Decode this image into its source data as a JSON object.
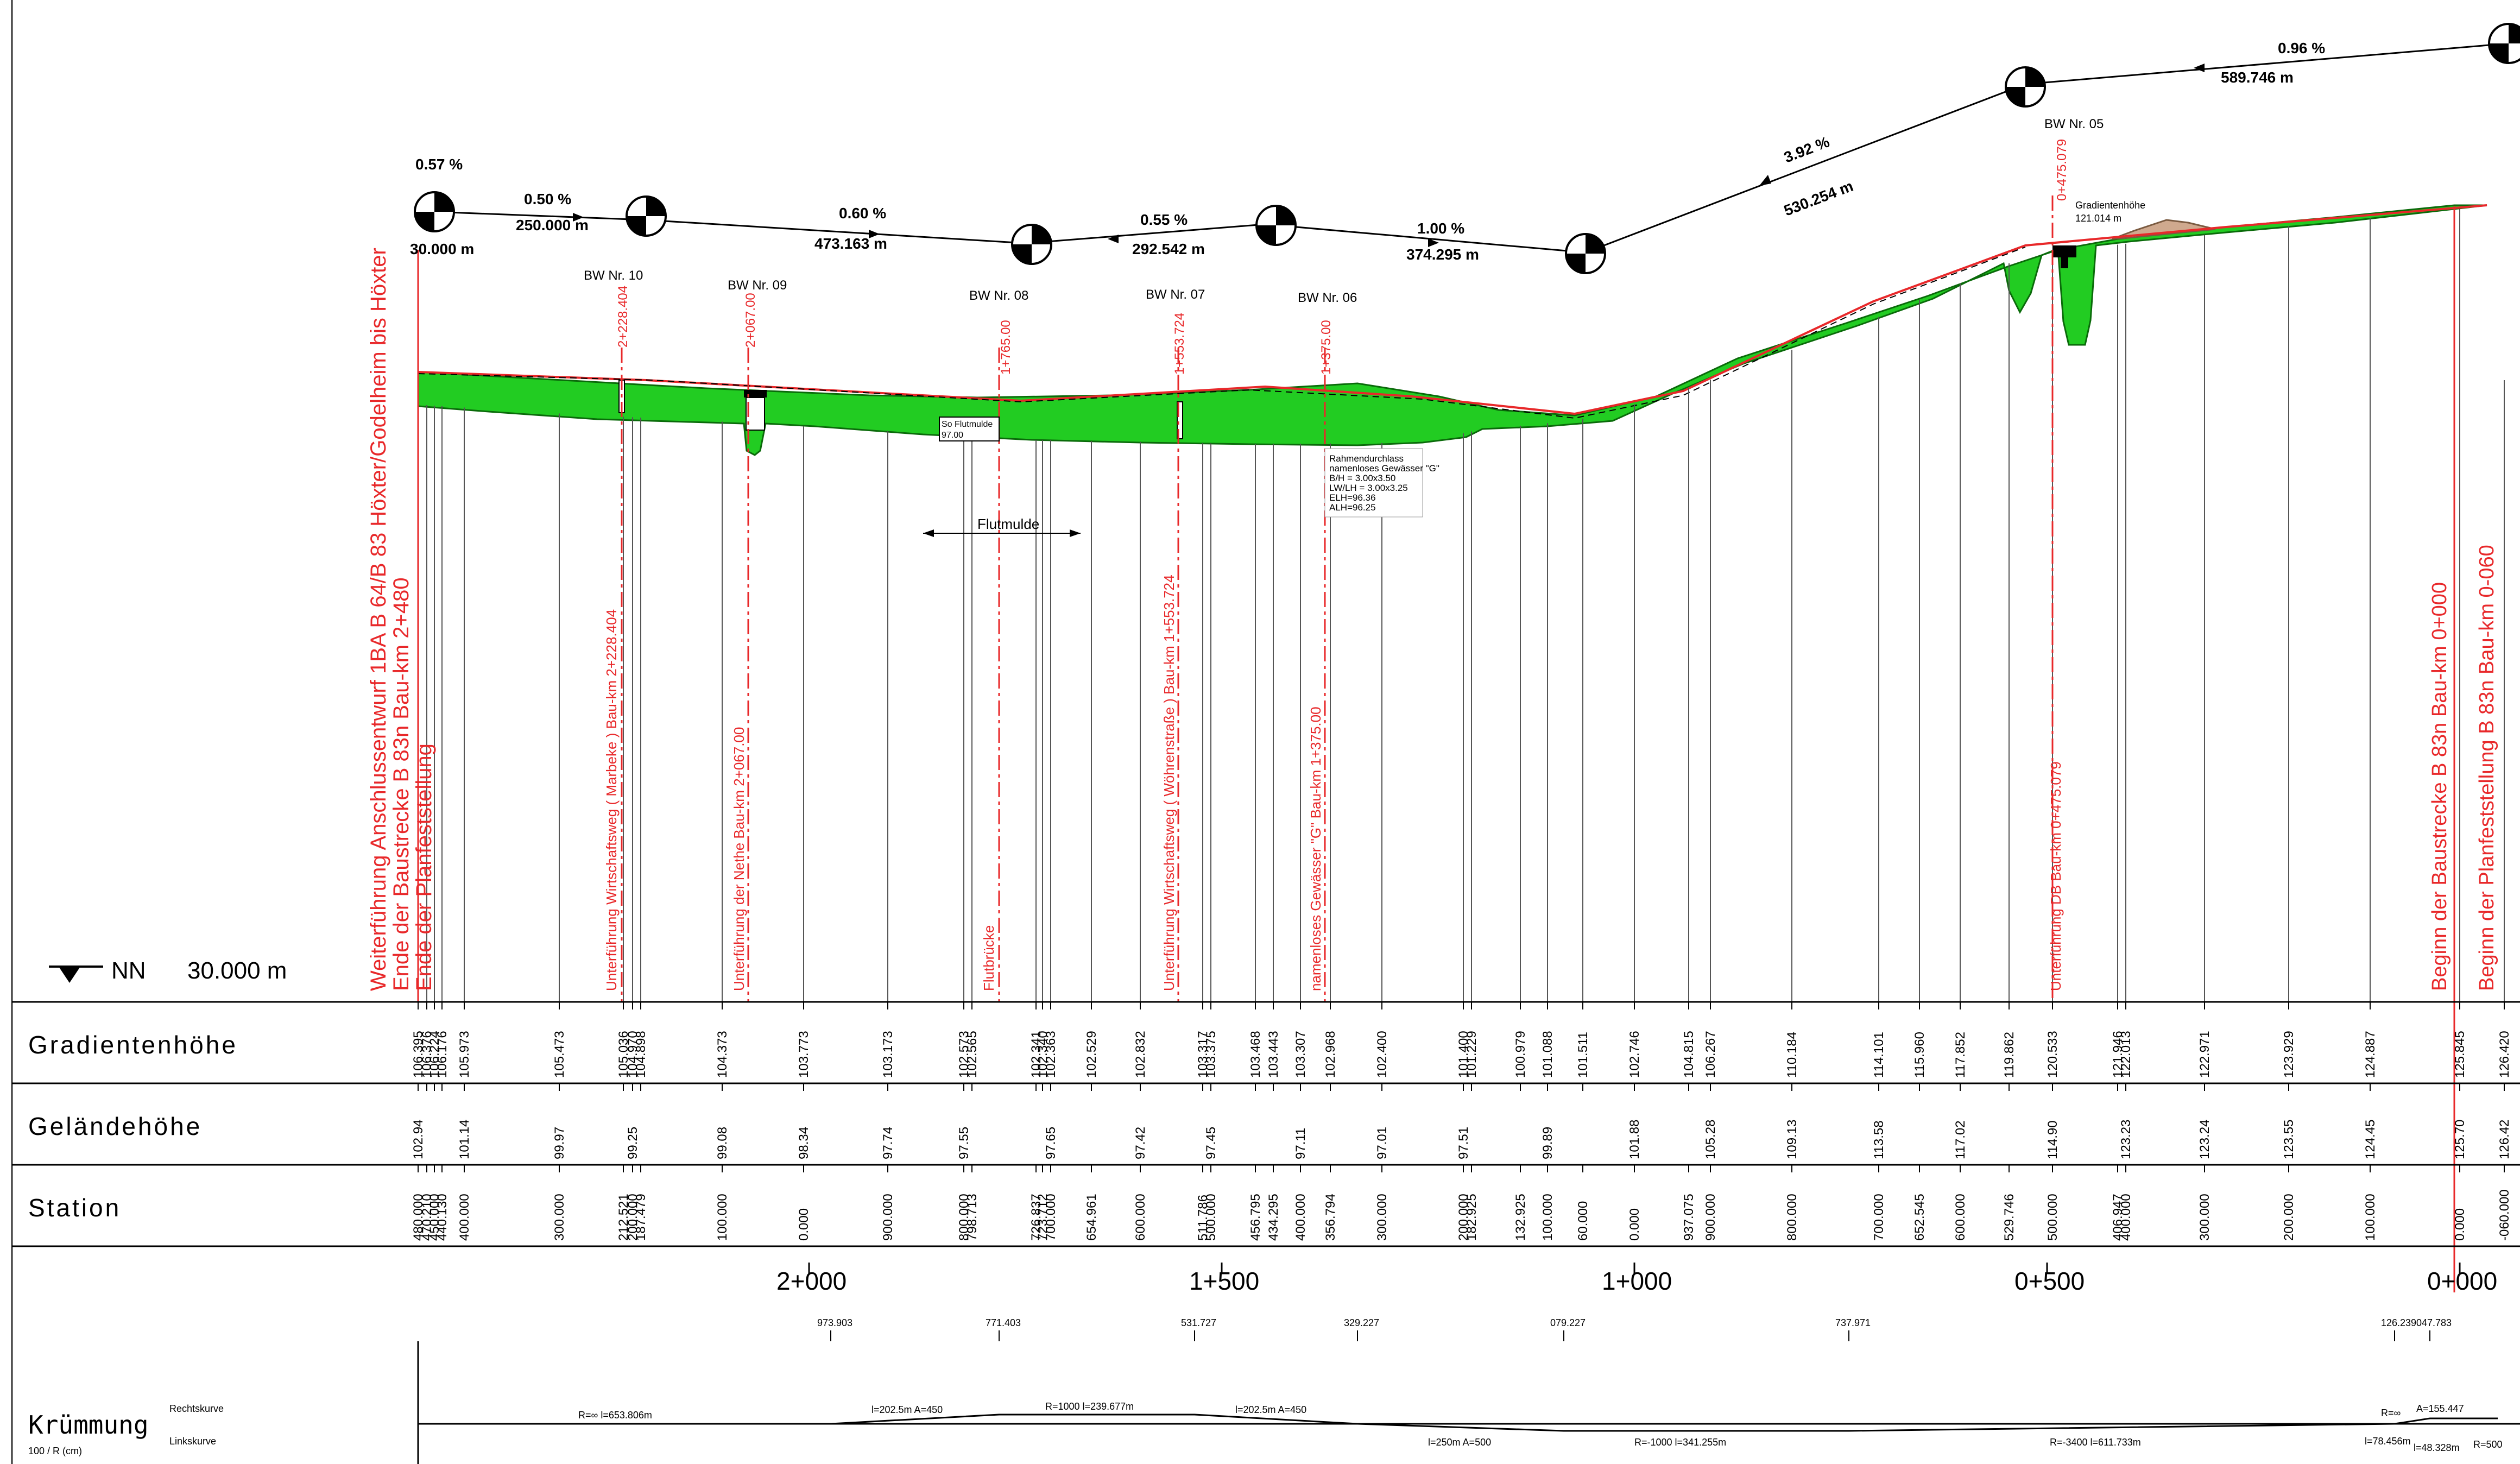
{
  "colors": {
    "fill": "#22cc22",
    "red": "#e8282a",
    "black": "#000000",
    "ground": "#cfa98e",
    "line": "#333333"
  },
  "datum_label": "NN",
  "datum_value": "30.000 m",
  "row_labels": [
    "Gradientenhöhe",
    "Geländehöhe",
    "Station"
  ],
  "curvature_label": "Krümmung",
  "curvature_sub": "100 / R (cm)",
  "curve_right": "Rechtskurve",
  "curve_left": "Linkskurve",
  "stationing": [
    "2+000",
    "1+500",
    "1+000",
    "0+500",
    "0+000"
  ],
  "tangent_points": [
    "973.903",
    "771.403",
    "531.727",
    "329.227",
    "079.227",
    "737.971",
    "126.239",
    "047.783"
  ],
  "curve_params": [
    "R=∞  l=653.806m",
    "l=202.5m  A=450",
    "R=1000  l=239.677m",
    "l=202.5m  A=450",
    "l=250m  A=500",
    "R=-1000  l=341.255m",
    "R=-3400  l=611.733m",
    "R=∞",
    "A=155.447",
    "l=78.456m",
    "l=48.328m",
    "R=500"
  ],
  "grades": [
    {
      "pct": "0.57 %",
      "len": "30.000 m"
    },
    {
      "pct": "0.50 %",
      "len": "250.000 m"
    },
    {
      "pct": "0.60 %",
      "len": "473.163 m"
    },
    {
      "pct": "0.55 %",
      "len": "292.542 m"
    },
    {
      "pct": "1.00 %",
      "len": "374.295 m"
    },
    {
      "pct": "3.92 %",
      "len": "530.254 m"
    },
    {
      "pct": "0.96 %",
      "len": "589.746 m"
    }
  ],
  "structures": [
    "BW Nr. 10",
    "BW Nr. 09",
    "BW Nr. 08",
    "BW Nr. 07",
    "BW Nr. 06",
    "BW Nr. 05"
  ],
  "red_kms": [
    "2+228.404",
    "2+067.00",
    "1+765.00",
    "1+553.724",
    "1+375.00",
    "0+475.079"
  ],
  "vertical_labels": [
    "Weiterführung Anschlussentwurf 1BA  B 64/B 83 Höxter/Godelheim bis Höxter",
    "Ende der Baustrecke B 83n Bau-km 2+480",
    "Ende der Planfeststellung",
    "Unterführung Wirtschaftsweg ( Marbeke ) Bau-km 2+228.404",
    "Unterführung der Nethe Bau-km 2+067.00",
    "Flutbrücke",
    "Unterführung Wirtschaftsweg ( Wöhrenstraße ) Bau-km 1+553.724",
    "namenloses Gewässer \"G\"  Bau-km 1+375.00",
    "Unterführung DB Bau-km 0+475.079",
    "Beginn der Baustrecke B 83n Bau-km 0+000",
    "Beginn der Planfeststellung B 83n Bau-km 0-060"
  ],
  "annotations": {
    "flutmulde": "Flutmulde",
    "so_flutmulde": "So Flutmulde",
    "so_value": "97.00",
    "gradientenhoehe": "Gradientenhöhe",
    "gradient_value": "121.014 m",
    "culvert": [
      "Rahmendurchlass",
      "namenloses Gewässer \"G\"",
      "B/H      = 3.00x3.50",
      "LW/LH = 3.00x3.25",
      "ELH=96.36",
      "ALH=96.25"
    ]
  },
  "columns": [
    {
      "g": "106.395",
      "t": "102.94",
      "s": "480.000"
    },
    {
      "g": "106.376",
      "t": "",
      "s": "470.210"
    },
    {
      "g": "106.224",
      "t": "",
      "s": "450.000"
    },
    {
      "g": "106.176",
      "t": "",
      "s": "440.130"
    },
    {
      "g": "105.973",
      "t": "101.14",
      "s": "400.000"
    },
    {
      "g": "105.473",
      "t": "99.97",
      "s": "300.000"
    },
    {
      "g": "105.036",
      "t": "",
      "s": "212.521"
    },
    {
      "g": "104.970",
      "t": "99.25",
      "s": "200.000"
    },
    {
      "g": "104.898",
      "t": "",
      "s": "187.479"
    },
    {
      "g": "104.373",
      "t": "99.08",
      "s": "100.000"
    },
    {
      "g": "103.773",
      "t": "98.34",
      "s": "0.000"
    },
    {
      "g": "103.173",
      "t": "97.74",
      "s": "900.000"
    },
    {
      "g": "102.573",
      "t": "97.55",
      "s": "800.000"
    },
    {
      "g": "102.565",
      "t": "",
      "s": "798.713"
    },
    {
      "g": "102.341",
      "t": "",
      "s": "726.837"
    },
    {
      "g": "102.340",
      "t": "",
      "s": "723.712"
    },
    {
      "g": "102.363",
      "t": "97.65",
      "s": "700.000"
    },
    {
      "g": "102.529",
      "t": "",
      "s": "654.961"
    },
    {
      "g": "102.832",
      "t": "97.42",
      "s": "600.000"
    },
    {
      "g": "103.317",
      "t": "",
      "s": "511.786"
    },
    {
      "g": "103.375",
      "t": "97.45",
      "s": "500.000"
    },
    {
      "g": "103.468",
      "t": "",
      "s": "456.795"
    },
    {
      "g": "103.443",
      "t": "",
      "s": "434.295"
    },
    {
      "g": "103.307",
      "t": "97.11",
      "s": "400.000"
    },
    {
      "g": "102.968",
      "t": "",
      "s": "356.794"
    },
    {
      "g": "102.400",
      "t": "97.01",
      "s": "300.000"
    },
    {
      "g": "101.400",
      "t": "97.51",
      "s": "200.000"
    },
    {
      "g": "101.229",
      "t": "",
      "s": "182.925"
    },
    {
      "g": "100.979",
      "t": "",
      "s": "132.925"
    },
    {
      "g": "101.088",
      "t": "99.89",
      "s": "100.000"
    },
    {
      "g": "101.511",
      "t": "",
      "s": "60.000"
    },
    {
      "g": "102.746",
      "t": "101.88",
      "s": "0.000"
    },
    {
      "g": "104.815",
      "t": "",
      "s": "937.075"
    },
    {
      "g": "106.267",
      "t": "105.28",
      "s": "900.000"
    },
    {
      "g": "110.184",
      "t": "109.13",
      "s": "800.000"
    },
    {
      "g": "114.101",
      "t": "113.58",
      "s": "700.000"
    },
    {
      "g": "115.960",
      "t": "",
      "s": "652.545"
    },
    {
      "g": "117.852",
      "t": "117.02",
      "s": "600.000"
    },
    {
      "g": "119.862",
      "t": "",
      "s": "529.746"
    },
    {
      "g": "120.533",
      "t": "114.90",
      "s": "500.000"
    },
    {
      "g": "121.946",
      "t": "",
      "s": "406.947"
    },
    {
      "g": "122.013",
      "t": "123.23",
      "s": "400.000"
    },
    {
      "g": "122.971",
      "t": "123.24",
      "s": "300.000"
    },
    {
      "g": "123.929",
      "t": "123.55",
      "s": "200.000"
    },
    {
      "g": "124.887",
      "t": "124.45",
      "s": "100.000"
    },
    {
      "g": "125.845",
      "t": "125.70",
      "s": "0.000"
    },
    {
      "g": "126.420",
      "t": "126.42",
      "s": "-060.000"
    }
  ]
}
